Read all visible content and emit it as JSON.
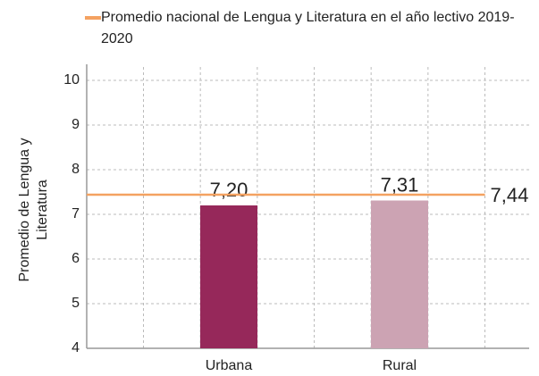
{
  "chart_data": {
    "type": "bar",
    "categories": [
      "Urbana",
      "Rural"
    ],
    "values": [
      7.2,
      7.31
    ],
    "value_labels": [
      "7,20",
      "7,31"
    ],
    "colors": [
      "#96285a",
      "#cca3b3"
    ],
    "reference_line": {
      "name": "Promedio nacional de Lengua y Literatura en el año lectivo 2019-2020",
      "value": 7.44,
      "value_label": "7,44",
      "color": "#f4a261"
    },
    "y_label": "Promedio de Lengua y Literatura",
    "ylim": [
      4,
      10
    ],
    "yticks": [
      4,
      5,
      6,
      7,
      8,
      9,
      10
    ],
    "grid": true
  }
}
